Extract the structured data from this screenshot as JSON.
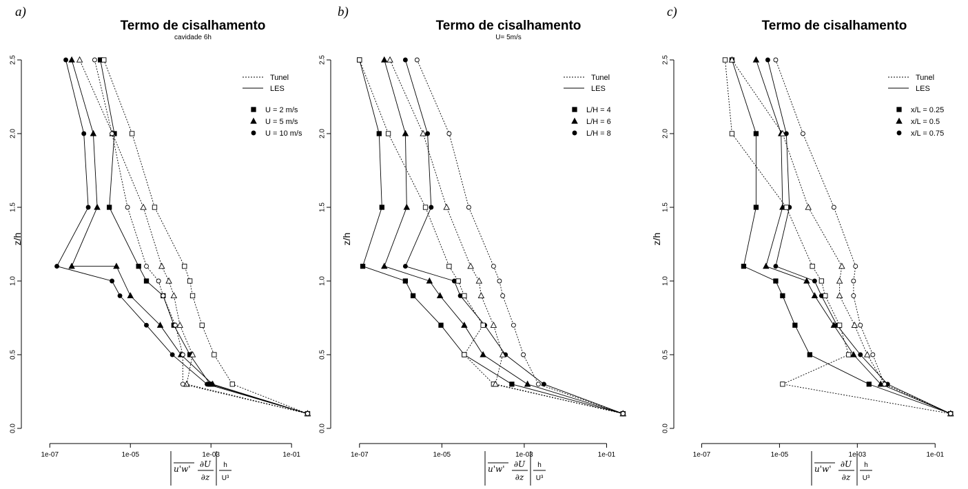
{
  "x_ticks": [
    "1e-07",
    "1e-05",
    "1e-03",
    "1e-01"
  ],
  "y_ticks": [
    "0.0",
    "0.5",
    "1.0",
    "1.5",
    "2.0",
    "2.5"
  ],
  "ylabel": "z/h",
  "xlabel": {
    "uw": "u'w'",
    "dU": "∂U",
    "dz": "∂z",
    "h": "h",
    "U3": "U³"
  },
  "legend_lines": [
    "Tunel",
    "LES"
  ],
  "panels": [
    {
      "label": "a)",
      "title": "Termo de cisalhamento",
      "subtitle": "cavidade 6h",
      "legend_points": [
        "U = 2 m/s",
        "U = 5 m/s",
        "U = 10 m/s"
      ]
    },
    {
      "label": "b)",
      "title": "Termo de cisalhamento",
      "subtitle": "U= 5m/s",
      "legend_points": [
        "L/H = 4",
        "L/H = 6",
        "L/H = 8"
      ]
    },
    {
      "label": "c)",
      "title": "Termo de cisalhamento",
      "subtitle": "",
      "legend_points": [
        "x/L = 0.25",
        "x/L = 0.5",
        "x/L = 0.75"
      ]
    }
  ],
  "chart_data": [
    {
      "type": "line",
      "log_x": true,
      "xlim": [
        4e-08,
        0.35
      ],
      "ylim": [
        0.0,
        2.5
      ],
      "series": [
        {
          "name": "U = 2 m/s",
          "source": "LES",
          "marker": "square",
          "filled": true,
          "x": [
            0.25,
            0.00095,
            0.0003,
            0.00012,
            6.5e-05,
            2.5e-05,
            1.6e-05,
            3e-06,
            4e-06,
            1.8e-06
          ],
          "y": [
            0.1,
            0.3,
            0.5,
            0.7,
            0.9,
            1.0,
            1.1,
            1.5,
            2.0,
            2.5
          ]
        },
        {
          "name": "U = 5 m/s",
          "source": "LES",
          "marker": "triangle",
          "filled": true,
          "x": [
            0.25,
            0.0011,
            0.00018,
            5.5e-05,
            1e-05,
            4.5e-06,
            3.5e-07,
            1.5e-06,
            1.2e-06,
            3.5e-07
          ],
          "y": [
            0.1,
            0.3,
            0.5,
            0.7,
            0.9,
            1.1,
            1.1,
            1.5,
            2.0,
            2.5
          ]
        },
        {
          "name": "U = 10 m/s",
          "source": "LES",
          "marker": "circle",
          "filled": true,
          "x": [
            0.25,
            0.0008,
            0.00011,
            2.5e-05,
            5.5e-06,
            3.5e-06,
            1.5e-07,
            9e-07,
            7e-07,
            2.5e-07
          ],
          "y": [
            0.1,
            0.3,
            0.5,
            0.7,
            0.9,
            1.0,
            1.1,
            1.5,
            2.0,
            2.5
          ]
        },
        {
          "name": "U = 2 m/s",
          "source": "Tunel",
          "marker": "square",
          "filled": false,
          "x": [
            0.25,
            0.0034,
            0.0012,
            0.0006,
            0.00035,
            0.0003,
            0.00022,
            4e-05,
            1.1e-05,
            2.2e-06
          ],
          "y": [
            0.1,
            0.3,
            0.5,
            0.7,
            0.9,
            1.0,
            1.1,
            1.5,
            2.0,
            2.5
          ]
        },
        {
          "name": "U = 5 m/s",
          "source": "Tunel",
          "marker": "triangle",
          "filled": false,
          "x": [
            0.25,
            0.00025,
            0.00035,
            0.00017,
            0.00012,
            9e-05,
            6e-05,
            2.1e-05,
            3.6e-06,
            5.5e-07
          ],
          "y": [
            0.1,
            0.3,
            0.5,
            0.7,
            0.9,
            1.0,
            1.1,
            1.5,
            2.0,
            2.5
          ]
        },
        {
          "name": "U = 10 m/s",
          "source": "Tunel",
          "marker": "circle",
          "filled": false,
          "x": [
            0.25,
            0.0002,
            0.0002,
            0.00013,
            6.5e-05,
            5e-05,
            2.5e-05,
            8.5e-06,
            3.5e-06,
            1.3e-06
          ],
          "y": [
            0.1,
            0.3,
            0.5,
            0.7,
            0.9,
            1.0,
            1.1,
            1.5,
            2.0,
            2.5
          ]
        }
      ]
    },
    {
      "type": "line",
      "log_x": true,
      "xlim": [
        4e-08,
        0.35
      ],
      "ylim": [
        0.0,
        2.5
      ],
      "series": [
        {
          "name": "L/H = 4",
          "source": "LES",
          "marker": "square",
          "filled": true,
          "x": [
            0.25,
            0.0005,
            3.5e-05,
            9.5e-06,
            2e-06,
            1.3e-06,
            1.2e-07,
            3.5e-07,
            3e-07,
            1e-07
          ],
          "y": [
            0.1,
            0.3,
            0.5,
            0.7,
            0.9,
            1.0,
            1.1,
            1.5,
            2.0,
            2.5
          ]
        },
        {
          "name": "L/H = 6",
          "source": "LES",
          "marker": "triangle",
          "filled": true,
          "x": [
            0.25,
            0.0012,
            0.0001,
            3.5e-05,
            9e-06,
            5e-06,
            4e-07,
            1.4e-06,
            1.3e-06,
            4e-07
          ],
          "y": [
            0.1,
            0.3,
            0.5,
            0.7,
            0.9,
            1.0,
            1.1,
            1.5,
            2.0,
            2.5
          ]
        },
        {
          "name": "L/H = 8",
          "source": "LES",
          "marker": "circle",
          "filled": true,
          "x": [
            0.25,
            0.003,
            0.00035,
            0.00011,
            2.8e-05,
            2e-05,
            1.3e-06,
            5.5e-06,
            4.5e-06,
            1.3e-06
          ],
          "y": [
            0.1,
            0.3,
            0.5,
            0.7,
            0.9,
            1.0,
            1.1,
            1.5,
            2.0,
            2.5
          ]
        },
        {
          "name": "L/H = 4",
          "source": "Tunel",
          "marker": "square",
          "filled": false,
          "x": [
            0.25,
            0.00018,
            3.5e-05,
            0.0001,
            3.5e-05,
            2.5e-05,
            1.5e-05,
            4e-06,
            5e-07,
            1e-07
          ],
          "y": [
            0.1,
            0.3,
            0.5,
            0.7,
            0.9,
            1.0,
            1.1,
            1.5,
            2.0,
            2.5
          ]
        },
        {
          "name": "L/H = 6",
          "source": "Tunel",
          "marker": "triangle",
          "filled": false,
          "x": [
            0.25,
            0.0002,
            0.0003,
            0.00018,
            9e-05,
            8e-05,
            5e-05,
            1.3e-05,
            3.5e-06,
            5.5e-07
          ],
          "y": [
            0.1,
            0.3,
            0.5,
            0.7,
            0.9,
            1.0,
            1.1,
            1.5,
            2.0,
            2.5
          ]
        },
        {
          "name": "L/H = 8",
          "source": "Tunel",
          "marker": "circle",
          "filled": false,
          "x": [
            0.25,
            0.0022,
            0.00095,
            0.00055,
            0.0003,
            0.00025,
            0.00018,
            4.5e-05,
            1.5e-05,
            2.5e-06
          ],
          "y": [
            0.1,
            0.3,
            0.5,
            0.7,
            0.9,
            1.0,
            1.1,
            1.5,
            2.0,
            2.5
          ]
        }
      ]
    },
    {
      "type": "line",
      "log_x": true,
      "xlim": [
        4e-08,
        0.35
      ],
      "ylim": [
        0.0,
        2.5
      ],
      "series": [
        {
          "name": "x/L = 0.25",
          "source": "LES",
          "marker": "square",
          "filled": true,
          "x": [
            0.25,
            0.002,
            6e-05,
            2.5e-05,
            1.2e-05,
            8e-06,
            1.2e-06,
            2.5e-06,
            2.5e-06,
            6e-07
          ],
          "y": [
            0.1,
            0.3,
            0.5,
            0.7,
            0.9,
            1.0,
            1.1,
            1.5,
            2.0,
            2.5
          ]
        },
        {
          "name": "x/L = 0.5",
          "source": "LES",
          "marker": "triangle",
          "filled": true,
          "x": [
            0.25,
            0.004,
            0.0008,
            0.00025,
            8e-05,
            5e-05,
            4.5e-06,
            1.2e-05,
            1.1e-05,
            2.5e-06
          ],
          "y": [
            0.1,
            0.3,
            0.5,
            0.7,
            0.9,
            1.0,
            1.1,
            1.5,
            2.0,
            2.5
          ]
        },
        {
          "name": "x/L = 0.75",
          "source": "LES",
          "marker": "circle",
          "filled": true,
          "x": [
            0.25,
            0.006,
            0.0012,
            0.0003,
            0.00012,
            8e-05,
            8e-06,
            1.8e-05,
            1.5e-05,
            5e-06
          ],
          "y": [
            0.1,
            0.3,
            0.5,
            0.7,
            0.9,
            1.0,
            1.1,
            1.5,
            2.0,
            2.5
          ]
        },
        {
          "name": "x/L = 0.25",
          "source": "Tunel",
          "marker": "square",
          "filled": false,
          "x": [
            0.25,
            1.2e-05,
            0.0006,
            0.00035,
            0.00015,
            0.00012,
            7e-05,
            1.5e-05,
            6e-07,
            4e-07
          ],
          "y": [
            0.1,
            0.3,
            0.5,
            0.7,
            0.9,
            1.0,
            1.1,
            1.5,
            2.0,
            2.5
          ]
        },
        {
          "name": "x/L = 0.5",
          "source": "Tunel",
          "marker": "triangle",
          "filled": false,
          "x": [
            0.25,
            0.005,
            0.0018,
            0.00085,
            0.00035,
            0.00035,
            0.0004,
            5.5e-05,
            1.2e-05,
            6e-07
          ],
          "y": [
            0.1,
            0.3,
            0.5,
            0.7,
            0.9,
            1.0,
            1.1,
            1.5,
            2.0,
            2.5
          ]
        },
        {
          "name": "x/L = 0.75",
          "source": "Tunel",
          "marker": "circle",
          "filled": false,
          "x": [
            0.25,
            0.005,
            0.0025,
            0.0012,
            0.0008,
            0.0008,
            0.0009,
            0.00025,
            4e-05,
            8e-06
          ],
          "y": [
            0.1,
            0.3,
            0.5,
            0.7,
            0.9,
            1.0,
            1.1,
            1.5,
            2.0,
            2.5
          ]
        }
      ]
    }
  ]
}
